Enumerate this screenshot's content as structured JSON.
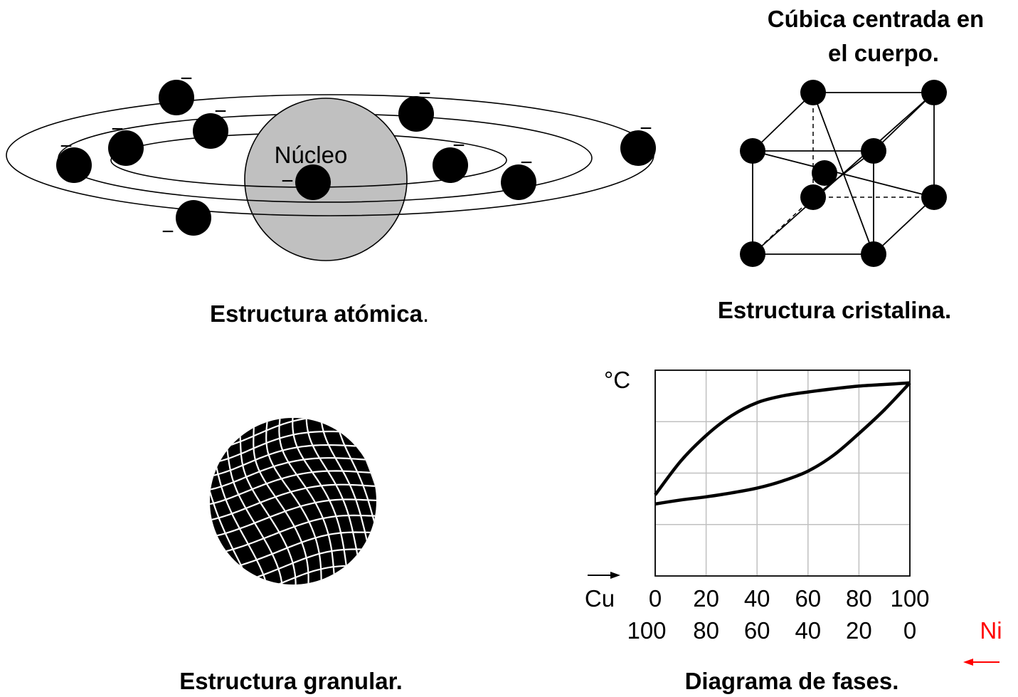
{
  "panels": {
    "atomic": {
      "caption": "Estructura atómica",
      "caption_dot": ".",
      "nucleus_label": "Núcleo",
      "electron_sign": "−",
      "colors": {
        "nucleus_fill": "#c0c0c0",
        "electron": "#000000"
      }
    },
    "crystal": {
      "title_line1": "Cúbica centrada en",
      "title_line2": "el cuerpo.",
      "caption": "Estructura cristalina."
    },
    "granular": {
      "caption": "Estructura granular."
    },
    "phase": {
      "caption": "Diagrama de fases.",
      "y_unit": "°C",
      "x_left_label": "Cu",
      "x_right_label": "Ni",
      "x_ticks": [
        "0",
        "20",
        "40",
        "60",
        "80",
        "100"
      ],
      "x_ticks_secondary": [
        "100",
        "80",
        "60",
        "40",
        "20",
        "0"
      ],
      "colors": {
        "secondary_axis": "#ff0000",
        "grid": "#c0c0c0"
      }
    }
  },
  "chart_data": {
    "type": "line",
    "x_range": [
      0,
      100
    ],
    "x_ticks": [
      0,
      20,
      40,
      60,
      80,
      100
    ],
    "x_ticks_secondary": [
      100,
      80,
      60,
      40,
      20,
      0
    ],
    "y_unit": "°C",
    "grid": true,
    "series": [
      {
        "points": [
          [
            0,
            2.05
          ],
          [
            10,
            2.9
          ],
          [
            20,
            3.55
          ],
          [
            30,
            4.05
          ],
          [
            40,
            4.38
          ],
          [
            50,
            4.55
          ],
          [
            60,
            4.65
          ],
          [
            70,
            4.73
          ],
          [
            80,
            4.8
          ],
          [
            90,
            4.84
          ],
          [
            100,
            4.88
          ]
        ]
      },
      {
        "points": [
          [
            0,
            1.82
          ],
          [
            10,
            1.92
          ],
          [
            20,
            2.0
          ],
          [
            30,
            2.1
          ],
          [
            40,
            2.22
          ],
          [
            50,
            2.4
          ],
          [
            60,
            2.65
          ],
          [
            70,
            3.05
          ],
          [
            80,
            3.6
          ],
          [
            90,
            4.2
          ],
          [
            100,
            4.88
          ]
        ]
      }
    ]
  }
}
